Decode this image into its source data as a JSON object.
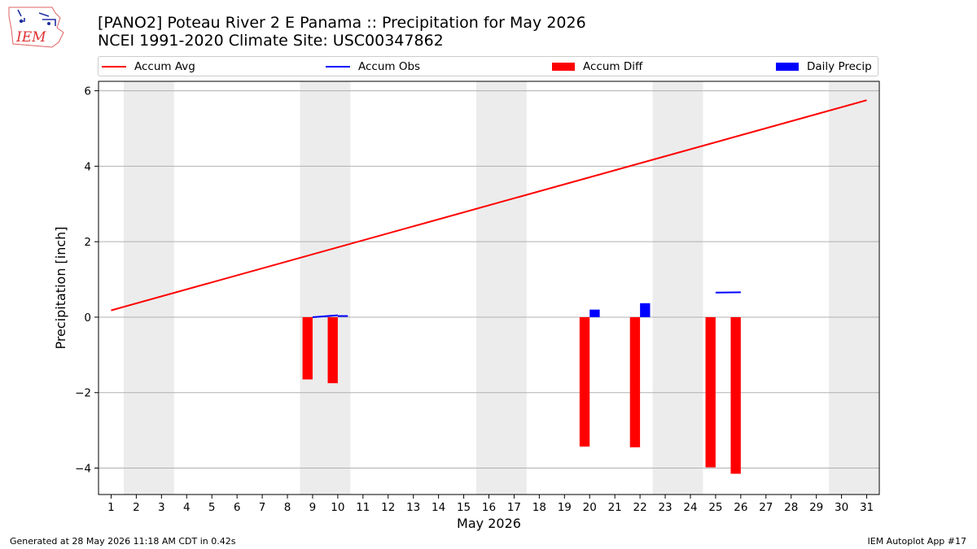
{
  "header": {
    "title_line1": "[PANO2] Poteau River 2 E Panama :: Precipitation for May 2026",
    "title_line2": "NCEI 1991-2020 Climate Site: USC00347862",
    "logo_text": "IEM"
  },
  "legend": {
    "items": [
      {
        "label": "Accum Avg",
        "color": "#ff0000",
        "kind": "line"
      },
      {
        "label": "Accum Obs",
        "color": "#0000ff",
        "kind": "line"
      },
      {
        "label": "Accum Diff",
        "color": "#ff0000",
        "kind": "box"
      },
      {
        "label": "Daily Precip",
        "color": "#0000ff",
        "kind": "box"
      }
    ]
  },
  "chart_data": {
    "type": "bar",
    "xlabel": "May 2026",
    "ylabel": "Precipitation [inch]",
    "ylim": [
      -4.7,
      6.25
    ],
    "xlim": [
      0.5,
      31.5
    ],
    "yticks": [
      -4,
      -2,
      0,
      2,
      4,
      6
    ],
    "ytick_labels": [
      "−4",
      "−2",
      "0",
      "2",
      "4",
      "6"
    ],
    "xticks": [
      1,
      2,
      3,
      4,
      5,
      6,
      7,
      8,
      9,
      10,
      11,
      12,
      13,
      14,
      15,
      16,
      17,
      18,
      19,
      20,
      21,
      22,
      23,
      24,
      25,
      26,
      27,
      28,
      29,
      30,
      31
    ],
    "grid": "horizontal",
    "weekend_shading": [
      [
        1.5,
        3.5
      ],
      [
        8.5,
        10.5
      ],
      [
        15.5,
        17.5
      ],
      [
        22.5,
        24.5
      ],
      [
        29.5,
        31.5
      ]
    ],
    "series": [
      {
        "name": "Accum Avg",
        "kind": "line",
        "color": "#ff0000",
        "x": [
          1,
          31
        ],
        "y": [
          0.18,
          5.75
        ]
      },
      {
        "name": "Accum Obs",
        "kind": "line-segments",
        "color": "#0000ff",
        "segments": [
          {
            "x": [
              9,
              10
            ],
            "y": [
              0.0,
              0.05
            ]
          },
          {
            "x": [
              10,
              10.4
            ],
            "y": [
              0.03,
              0.03
            ]
          },
          {
            "x": [
              25,
              26
            ],
            "y": [
              0.65,
              0.66
            ]
          }
        ]
      },
      {
        "name": "Accum Diff",
        "kind": "bar",
        "color": "#ff0000",
        "x": [
          8.8,
          9.8,
          19.8,
          21.8,
          24.8,
          25.8
        ],
        "values": [
          -1.65,
          -1.75,
          -3.43,
          -3.45,
          -3.98,
          -4.15
        ]
      },
      {
        "name": "Daily Precip",
        "kind": "bar",
        "color": "#0000ff",
        "x": [
          20.2,
          22.2
        ],
        "values": [
          0.2,
          0.37
        ]
      }
    ]
  },
  "footer": {
    "left": "Generated at 28 May 2026 11:18 AM CDT in 0.42s",
    "right": "IEM Autoplot App #17"
  }
}
